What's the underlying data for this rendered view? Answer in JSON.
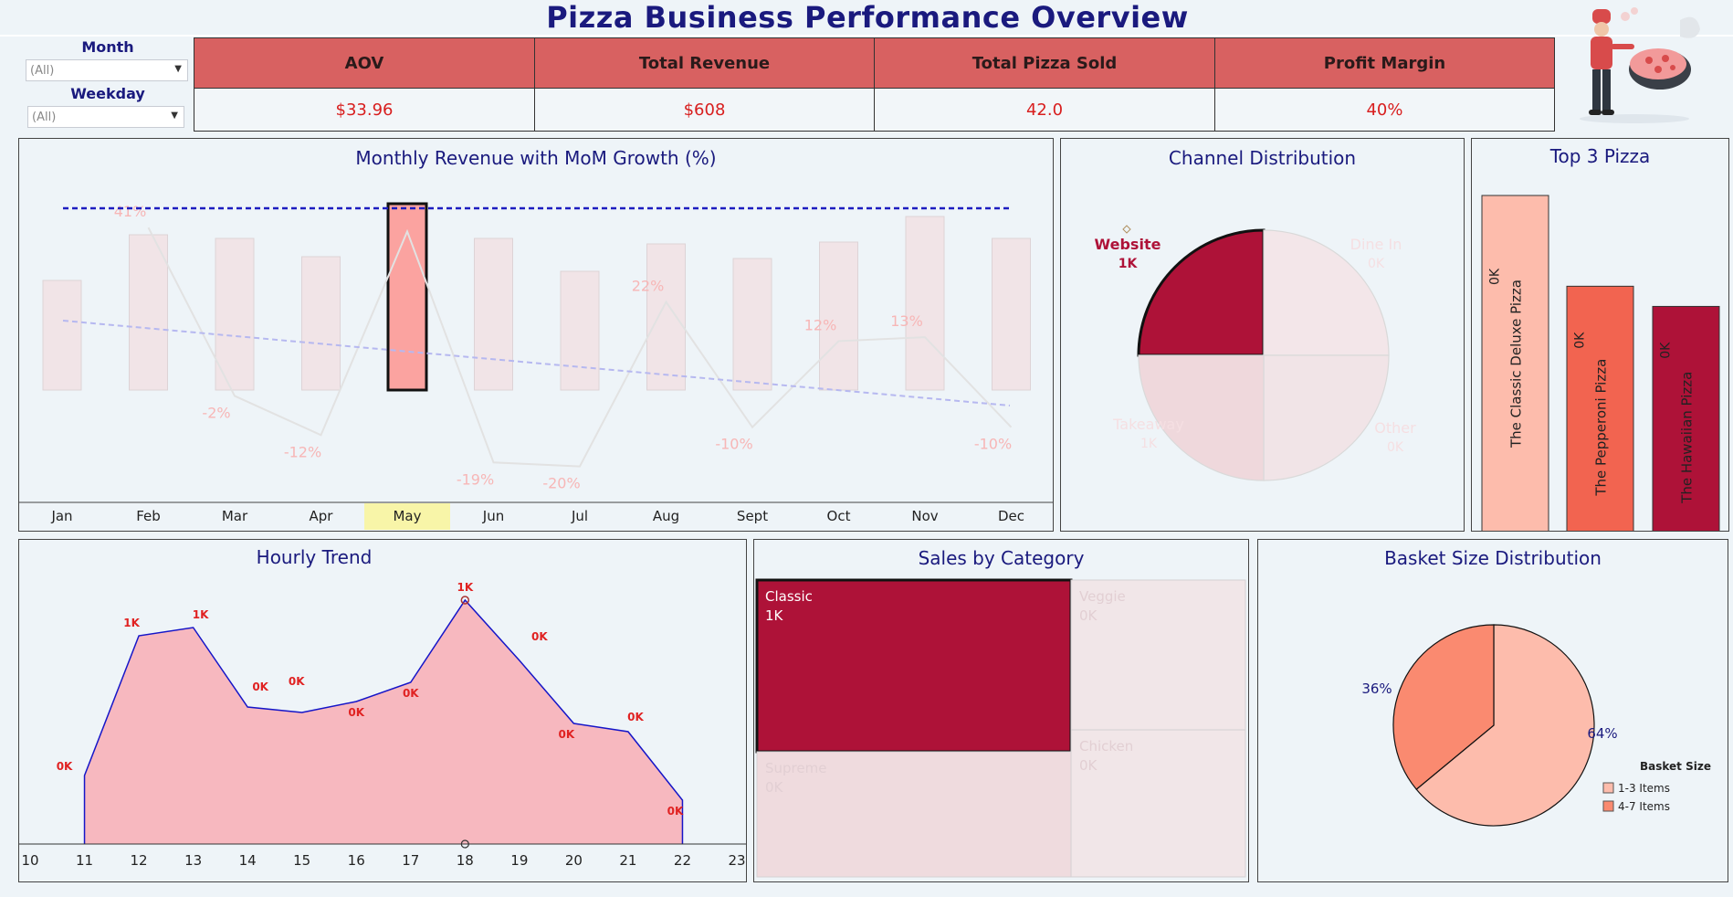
{
  "title": "Pizza Business Performance Overview",
  "filters": {
    "month_label": "Month",
    "month_value": "(All)",
    "weekday_label": "Weekday",
    "weekday_value": "(All)"
  },
  "kpis": [
    {
      "label": "AOV",
      "value": "$33.96"
    },
    {
      "label": "Total Revenue",
      "value": "$608"
    },
    {
      "label": "Total Pizza Sold",
      "value": "42.0"
    },
    {
      "label": "Profit Margin",
      "value": "40%"
    }
  ],
  "colors": {
    "title": "#1a1a7e",
    "kpi_header": "#d86161",
    "kpi_value": "#d81e1e",
    "crimson": "#ae1238",
    "salmon": "#fa8a70",
    "peach": "#fdbcac"
  },
  "monthly": {
    "title": "Monthly Revenue with MoM Growth (%)",
    "selected_month": "May",
    "chart_data": {
      "type": "bar",
      "categories": [
        "Jan",
        "Feb",
        "Mar",
        "Apr",
        "May",
        "Jun",
        "Jul",
        "Aug",
        "Sept",
        "Oct",
        "Nov",
        "Dec"
      ],
      "bar_values": [
        60,
        85,
        83,
        73,
        102,
        83,
        65,
        80,
        72,
        81,
        95,
        83
      ],
      "growth_labels": [
        "",
        "41%",
        "-2%",
        "-12%",
        "",
        "-19%",
        "-20%",
        "22%",
        "-10%",
        "12%",
        "13%",
        "-10%"
      ],
      "growth_values": [
        null,
        41,
        -2,
        -12,
        40,
        -19,
        -20,
        22,
        -10,
        12,
        13,
        -10
      ]
    }
  },
  "channel": {
    "title": "Channel Distribution",
    "chart_data": {
      "type": "pie",
      "slices": [
        {
          "name": "Website",
          "label": "1K",
          "value": 25
        },
        {
          "name": "Dine In",
          "label": "0K",
          "value": 25
        },
        {
          "name": "Other",
          "label": "0K",
          "value": 25
        },
        {
          "name": "Takeaway",
          "label": "1K",
          "value": 25
        }
      ],
      "highlighted": "Website"
    }
  },
  "top3": {
    "title": "Top 3 Pizza",
    "chart_data": {
      "type": "bar",
      "bars": [
        {
          "name": "The Classic Deluxe Pizza",
          "label": "0K",
          "value": 100,
          "color": "#fdbcac"
        },
        {
          "name": "The Pepperoni Pizza",
          "label": "0K",
          "value": 73,
          "color": "#f26450"
        },
        {
          "name": "The Hawaiian Pizza",
          "label": "0K",
          "value": 67,
          "color": "#ae1238"
        }
      ]
    }
  },
  "hourly": {
    "title": "Hourly Trend",
    "chart_data": {
      "type": "area",
      "ticks": [
        10,
        11,
        12,
        13,
        14,
        15,
        16,
        17,
        18,
        19,
        20,
        21,
        22,
        23
      ],
      "points": [
        {
          "x": 11,
          "y": 0.25,
          "label": "0K"
        },
        {
          "x": 12,
          "y": 0.76,
          "label": "1K"
        },
        {
          "x": 13,
          "y": 0.79,
          "label": "1K"
        },
        {
          "x": 14,
          "y": 0.5,
          "label": "0K"
        },
        {
          "x": 15,
          "y": 0.48,
          "label": "0K"
        },
        {
          "x": 16,
          "y": 0.52,
          "label": "0K"
        },
        {
          "x": 17,
          "y": 0.59,
          "label": "0K"
        },
        {
          "x": 18,
          "y": 0.89,
          "label": "1K"
        },
        {
          "x": 19,
          "y": 0.67,
          "label": "0K"
        },
        {
          "x": 20,
          "y": 0.44,
          "label": "0K"
        },
        {
          "x": 21,
          "y": 0.41,
          "label": "0K"
        },
        {
          "x": 22,
          "y": 0.16,
          "label": "0K"
        }
      ]
    }
  },
  "category": {
    "title": "Sales by Category",
    "chart_data": {
      "type": "treemap",
      "tiles": [
        {
          "name": "Classic",
          "label": "1K"
        },
        {
          "name": "Veggie",
          "label": "0K"
        },
        {
          "name": "Chicken",
          "label": "0K"
        },
        {
          "name": "Supreme",
          "label": "0K"
        }
      ],
      "highlighted": "Classic"
    }
  },
  "basket": {
    "title": "Basket Size Distribution",
    "legend_title": "Basket Size",
    "chart_data": {
      "type": "pie",
      "slices": [
        {
          "name": "1-3 Items",
          "value": 64,
          "label": "64%",
          "color": "#fdbcac"
        },
        {
          "name": "4-7 Items",
          "value": 36,
          "label": "36%",
          "color": "#fa8a70"
        }
      ]
    }
  }
}
